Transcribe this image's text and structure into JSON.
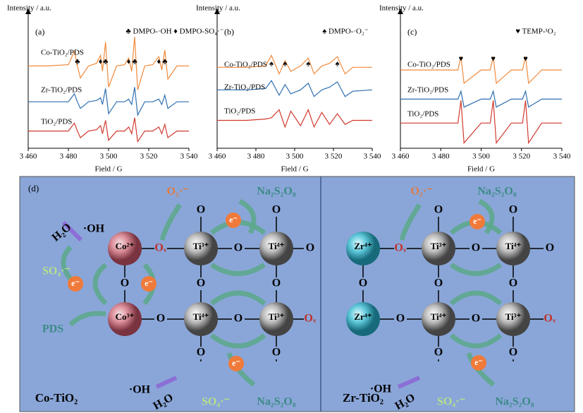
{
  "chart_data": [
    {
      "type": "line",
      "panel": "(a)",
      "y_label": "Intensity / a.u.",
      "x_label": "Field / G",
      "annotation": "♣ DMPO-·OH ♦ DMPO-SO₄·⁻",
      "xlim": [
        3460,
        3540
      ],
      "ylim": [
        0,
        10
      ],
      "xticks": [
        {
          "value": 3460,
          "label": "3 460"
        },
        {
          "value": 3480,
          "label": "3 480"
        },
        {
          "value": 3500,
          "label": "3 500"
        },
        {
          "value": 3520,
          "label": "3 520"
        },
        {
          "value": 3540,
          "label": "3 540"
        }
      ],
      "x": [
        3460,
        3470,
        3480,
        3483,
        3484.5,
        3486,
        3490,
        3494,
        3496,
        3497,
        3498.5,
        3500,
        3504,
        3508,
        3510,
        3511.5,
        3513,
        3514.5,
        3518,
        3522,
        3525,
        3526.5,
        3528,
        3529.5,
        3534,
        3540
      ],
      "series": [
        {
          "name": "Co-TiO₂/PDS",
          "color": "#f08a3c",
          "values": [
            6.2,
            6.2,
            6.3,
            7.3,
            6.2,
            5.3,
            6.2,
            6.4,
            7.0,
            5.8,
            8.0,
            4.6,
            6.2,
            6.3,
            6.8,
            5.8,
            8.4,
            4.4,
            6.2,
            6.3,
            6.9,
            5.9,
            7.4,
            5.2,
            6.2,
            6.2
          ]
        },
        {
          "name": "Zr-TiO₂/PDS",
          "color": "#2f6fb0",
          "values": [
            3.5,
            3.5,
            3.5,
            4.1,
            3.5,
            3.0,
            3.5,
            3.6,
            3.8,
            3.3,
            4.5,
            2.6,
            3.5,
            3.5,
            3.7,
            3.3,
            4.6,
            2.5,
            3.5,
            3.5,
            3.7,
            3.3,
            4.0,
            3.0,
            3.5,
            3.5
          ]
        },
        {
          "name": "TiO₂/PDS",
          "color": "#d03a2f",
          "values": [
            1.3,
            1.3,
            1.3,
            1.9,
            1.3,
            0.8,
            1.3,
            1.4,
            1.7,
            1.1,
            2.1,
            0.6,
            1.3,
            1.3,
            1.6,
            1.1,
            2.3,
            0.5,
            1.3,
            1.3,
            1.6,
            1.1,
            1.8,
            0.8,
            1.3,
            1.3
          ]
        }
      ],
      "peak_markers": [
        {
          "symbol": "♣",
          "x": 3484.5
        },
        {
          "symbol": "♦",
          "x": 3496
        },
        {
          "symbol": "♣",
          "x": 3498.5
        },
        {
          "symbol": "♦",
          "x": 3510
        },
        {
          "symbol": "♣",
          "x": 3513
        },
        {
          "symbol": "♦",
          "x": 3525
        },
        {
          "symbol": "♣",
          "x": 3528
        }
      ]
    },
    {
      "type": "line",
      "panel": "(b)",
      "y_label": "Intensity / a.u.",
      "x_label": "Field / G",
      "annotation": "♠ DMPO-·O₂⁻",
      "xlim": [
        3460,
        3540
      ],
      "ylim": [
        0,
        10
      ],
      "xticks": [
        {
          "value": 3460,
          "label": "3 460"
        },
        {
          "value": 3480,
          "label": "3 480"
        },
        {
          "value": 3500,
          "label": "3 500"
        },
        {
          "value": 3520,
          "label": "3 520"
        },
        {
          "value": 3540,
          "label": "3 540"
        }
      ],
      "x": [
        3460,
        3475,
        3485,
        3488,
        3492,
        3495,
        3498,
        3503,
        3507,
        3510,
        3514,
        3518,
        3522,
        3526,
        3530,
        3540
      ],
      "series": [
        {
          "name": "Co-TiO₂/PDS",
          "color": "#f08a3c",
          "values": [
            6.1,
            6.1,
            6.2,
            7.0,
            5.6,
            6.6,
            5.8,
            6.2,
            6.8,
            5.6,
            6.2,
            6.4,
            6.9,
            5.6,
            6.1,
            6.1
          ]
        },
        {
          "name": "Zr-TiO₂/PDS",
          "color": "#2f6fb0",
          "values": [
            4.4,
            4.4,
            4.5,
            5.1,
            4.0,
            4.8,
            4.1,
            4.4,
            4.9,
            3.9,
            4.4,
            4.6,
            5.0,
            3.9,
            4.3,
            4.4
          ]
        },
        {
          "name": "TiO₂/PDS",
          "color": "#d03a2f",
          "values": [
            2.1,
            2.1,
            2.2,
            2.3,
            2.9,
            1.6,
            2.8,
            1.7,
            2.9,
            1.6,
            2.7,
            1.8,
            2.6,
            1.8,
            2.1,
            2.1
          ]
        }
      ],
      "peak_markers": [
        {
          "symbol": "♠",
          "x": 3488
        },
        {
          "symbol": "♠",
          "x": 3495
        },
        {
          "symbol": "♠",
          "x": 3507
        },
        {
          "symbol": "♠",
          "x": 3522
        }
      ]
    },
    {
      "type": "line",
      "panel": "(c)",
      "y_label": "Intensity / a.u.",
      "x_label": "Field / G",
      "annotation": "♥ TEMP-¹O₂",
      "xlim": [
        3460,
        3540
      ],
      "ylim": [
        0,
        10
      ],
      "xticks": [
        {
          "value": 3460,
          "label": "3 460"
        },
        {
          "value": 3480,
          "label": "3 480"
        },
        {
          "value": 3500,
          "label": "3 500"
        },
        {
          "value": 3520,
          "label": "3 520"
        },
        {
          "value": 3540,
          "label": "3 540"
        }
      ],
      "x": [
        3460,
        3480,
        3488.5,
        3490,
        3491.5,
        3500,
        3504.5,
        3506,
        3507.5,
        3515,
        3520.5,
        3522,
        3523.5,
        3530,
        3540
      ],
      "series": [
        {
          "name": "Co-TiO₂/PDS",
          "color": "#f08a3c",
          "values": [
            5.9,
            5.9,
            5.9,
            6.9,
            4.9,
            5.9,
            5.9,
            6.9,
            4.9,
            5.9,
            5.9,
            6.9,
            4.9,
            5.9,
            5.9
          ]
        },
        {
          "name": "Zr-TiO₂/PDS",
          "color": "#2f6fb0",
          "values": [
            3.7,
            3.7,
            3.7,
            4.3,
            3.1,
            3.7,
            3.7,
            4.3,
            3.1,
            3.7,
            3.7,
            4.3,
            3.1,
            3.7,
            3.7
          ]
        },
        {
          "name": "TiO₂/PDS",
          "color": "#d03a2f",
          "values": [
            1.9,
            1.9,
            1.9,
            3.6,
            0.4,
            1.9,
            1.9,
            3.6,
            0.4,
            1.9,
            1.9,
            3.6,
            0.4,
            1.9,
            1.9
          ]
        }
      ],
      "peak_markers": [
        {
          "symbol": "♥",
          "x": 3490
        },
        {
          "symbol": "♥",
          "x": 3506
        },
        {
          "symbol": "♥",
          "x": 3522
        }
      ]
    }
  ],
  "diagram": {
    "label": "(d)",
    "panels": [
      {
        "title": "Co-TiO₂",
        "atoms": [
          "Co²⁺",
          "Co³⁺",
          "Ti³⁺",
          "Ti⁴⁺",
          "Ti⁴⁺",
          "Ti³⁺"
        ],
        "oxygens": [
          "Oᵥ",
          "O",
          "O",
          "O",
          "O",
          "Oᵥ",
          "O",
          "O",
          "O",
          "O",
          "O",
          "O",
          "O"
        ],
        "electrons": [
          "e⁻",
          "e⁻",
          "e⁻",
          "e⁻"
        ],
        "species": [
          "Na₂S₂O₈",
          "O₂·⁻",
          "H₂O",
          "·OH",
          "SO₄·⁻",
          "PDS",
          "·OH",
          "H₂O",
          "SO₄·⁻",
          "Na₂S₂O₈"
        ]
      },
      {
        "title": "Zr-TiO₂",
        "atoms": [
          "Zr⁴⁺",
          "Zr⁴⁺",
          "Ti³⁺",
          "Ti⁴⁺",
          "Ti⁴⁺",
          "Ti³⁺"
        ],
        "oxygens": [
          "Oᵥ",
          "O",
          "O",
          "O",
          "O",
          "Oᵥ",
          "O",
          "O",
          "O",
          "O",
          "O",
          "O",
          "O"
        ],
        "electrons": [
          "e⁻",
          "e⁻"
        ],
        "species": [
          "Na₂S₂O₈",
          "O₂·⁻",
          "·OH",
          "H₂O",
          "SO₄·⁻",
          "Na₂S₂O₈"
        ]
      }
    ]
  }
}
